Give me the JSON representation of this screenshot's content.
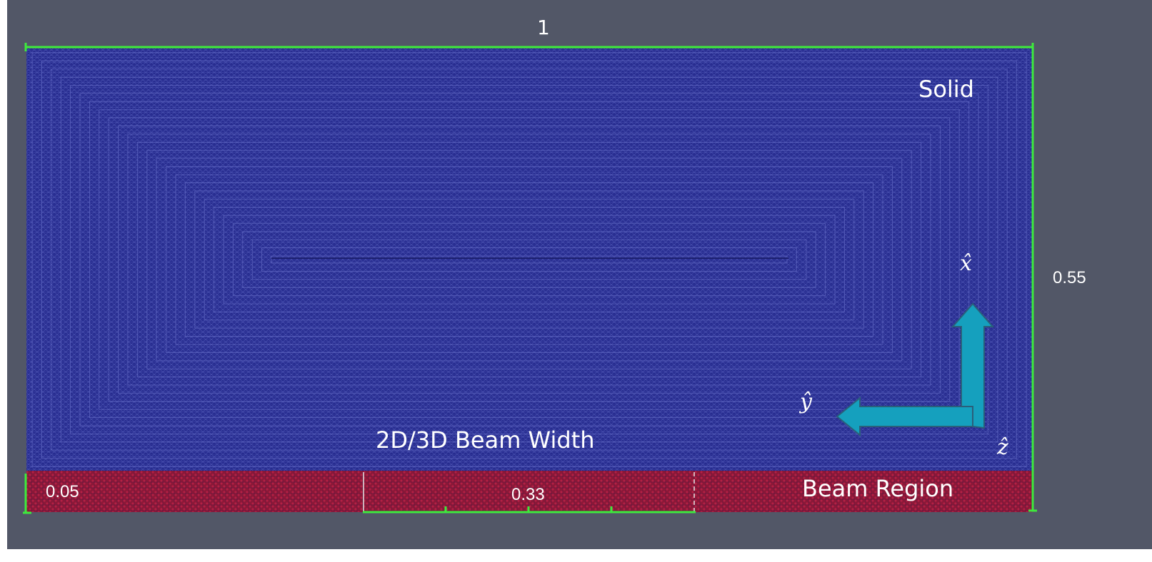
{
  "regions": {
    "solid_label": "Solid",
    "beam_region_label": "Beam Region",
    "beam_width_label": "2D/3D Beam Width"
  },
  "dimensions": {
    "length_label": "1",
    "height_label": "0.55",
    "left_offset_label": "0.05",
    "beam_width_value_label": "0.33"
  },
  "axes": {
    "x_label": "x̂",
    "y_label": "ŷ",
    "z_label": "ẑ"
  },
  "colors": {
    "background": "#525767",
    "solid": "#262b8f",
    "solid_mesh": "#5058b8",
    "beam": "#8c1a3a",
    "beam_mesh": "#b0203c",
    "ruler": "#3dea3d",
    "arrow": "#15a0be"
  }
}
